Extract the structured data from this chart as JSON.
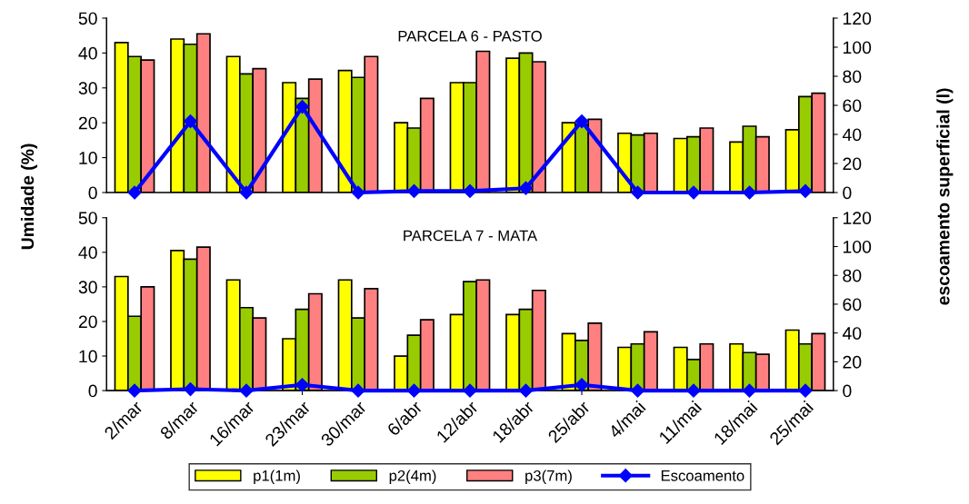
{
  "chart_data": [
    {
      "type": "bar",
      "title": "PARCELA 6 - PASTO",
      "ylabel": "Umidade (%)",
      "y2label": "escoamento superficial (l)",
      "categories": [
        null,
        null,
        null,
        null,
        null,
        null,
        null,
        null,
        null,
        null,
        null,
        null,
        null
      ],
      "series": [
        {
          "color": "#ffff00",
          "values": [
            43,
            44,
            39,
            31.5,
            35,
            20,
            31.5,
            38.5,
            20,
            17,
            15.5,
            14.5,
            18
          ]
        },
        {
          "color": "#99cc00",
          "values": [
            39,
            42.5,
            34,
            27,
            33,
            18.5,
            31.5,
            40,
            19.5,
            16.5,
            16,
            19,
            27.5
          ]
        },
        {
          "color": "#ff8080",
          "values": [
            38,
            45.5,
            35.5,
            32.5,
            39,
            27,
            40.5,
            37.5,
            21,
            17,
            18.5,
            16,
            28.5
          ]
        },
        {
          "type": "line",
          "axis": "y2",
          "color": "#0000ff",
          "values": [
            0,
            49,
            0,
            59,
            0,
            1,
            1,
            3,
            49,
            0,
            0,
            0,
            1
          ]
        }
      ],
      "ylim": [
        0,
        50
      ],
      "yticks": [
        0,
        10,
        20,
        30,
        40,
        50
      ],
      "y2lim": [
        0,
        120
      ],
      "y2ticks": [
        0,
        20,
        40,
        60,
        80,
        100,
        120
      ],
      "tick_labels": "y",
      "marker": "diamond",
      "line_style": "solid",
      "grid": false,
      "legend": false
    },
    {
      "type": "bar",
      "title": "PARCELA 7 - MATA",
      "categories": [
        "2/mar",
        "8/mar",
        "16/mar",
        "23/mar",
        "30/mar",
        "6/abr",
        "12/abr",
        "18/abr",
        "25/abr",
        "4/mai",
        "11/mai",
        "18/mai",
        "25/mai"
      ],
      "series": [
        {
          "name": "p1(1m)",
          "color": "#ffff00",
          "values": [
            33,
            40.5,
            32,
            15,
            32,
            10,
            22,
            22,
            16.5,
            12.5,
            12.5,
            13.5,
            17.5
          ]
        },
        {
          "name": "p2(4m)",
          "color": "#99cc00",
          "values": [
            21.5,
            38,
            24,
            23.5,
            21,
            16,
            31.5,
            23.5,
            14.5,
            13.5,
            9,
            11,
            13.5
          ]
        },
        {
          "name": "p3(7m)",
          "color": "#ff8080",
          "values": [
            30,
            41.5,
            21,
            28,
            29.5,
            20.5,
            32,
            29,
            19.5,
            17,
            13.5,
            10.5,
            16.5
          ]
        },
        {
          "name": "Escoamento",
          "type": "line",
          "axis": "y2",
          "color": "#0000ff",
          "values": [
            0,
            1,
            0,
            4,
            0,
            0,
            0,
            0,
            4,
            0,
            0,
            0,
            0
          ]
        }
      ],
      "ylim": [
        0,
        50
      ],
      "yticks": [
        0,
        10,
        20,
        30,
        40,
        50
      ],
      "y2lim": [
        0,
        120
      ],
      "y2ticks": [
        0,
        20,
        40,
        60,
        80,
        100,
        120
      ],
      "marker": "diamond",
      "line_style": "solid",
      "grid": false,
      "legend": "bottom"
    }
  ]
}
